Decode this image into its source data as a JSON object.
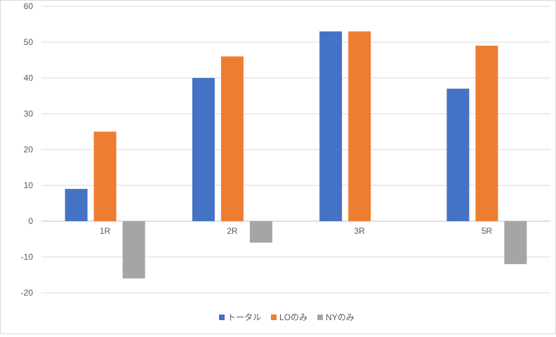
{
  "chart_data": {
    "type": "bar",
    "categories": [
      "1R",
      "2R",
      "3R",
      "5R"
    ],
    "series": [
      {
        "name": "トータル",
        "color": "#4472C4",
        "values": [
          9,
          40,
          53,
          37
        ]
      },
      {
        "name": "LOのみ",
        "color": "#ED7D31",
        "values": [
          25,
          46,
          53,
          49
        ]
      },
      {
        "name": "NYのみ",
        "color": "#A5A5A5",
        "values": [
          -16,
          -6,
          null,
          -12
        ]
      }
    ],
    "ylim": [
      -20,
      60
    ],
    "yticks": [
      60,
      50,
      40,
      30,
      20,
      10,
      0,
      -10,
      -20
    ],
    "grid": true,
    "legend_position": "bottom"
  }
}
